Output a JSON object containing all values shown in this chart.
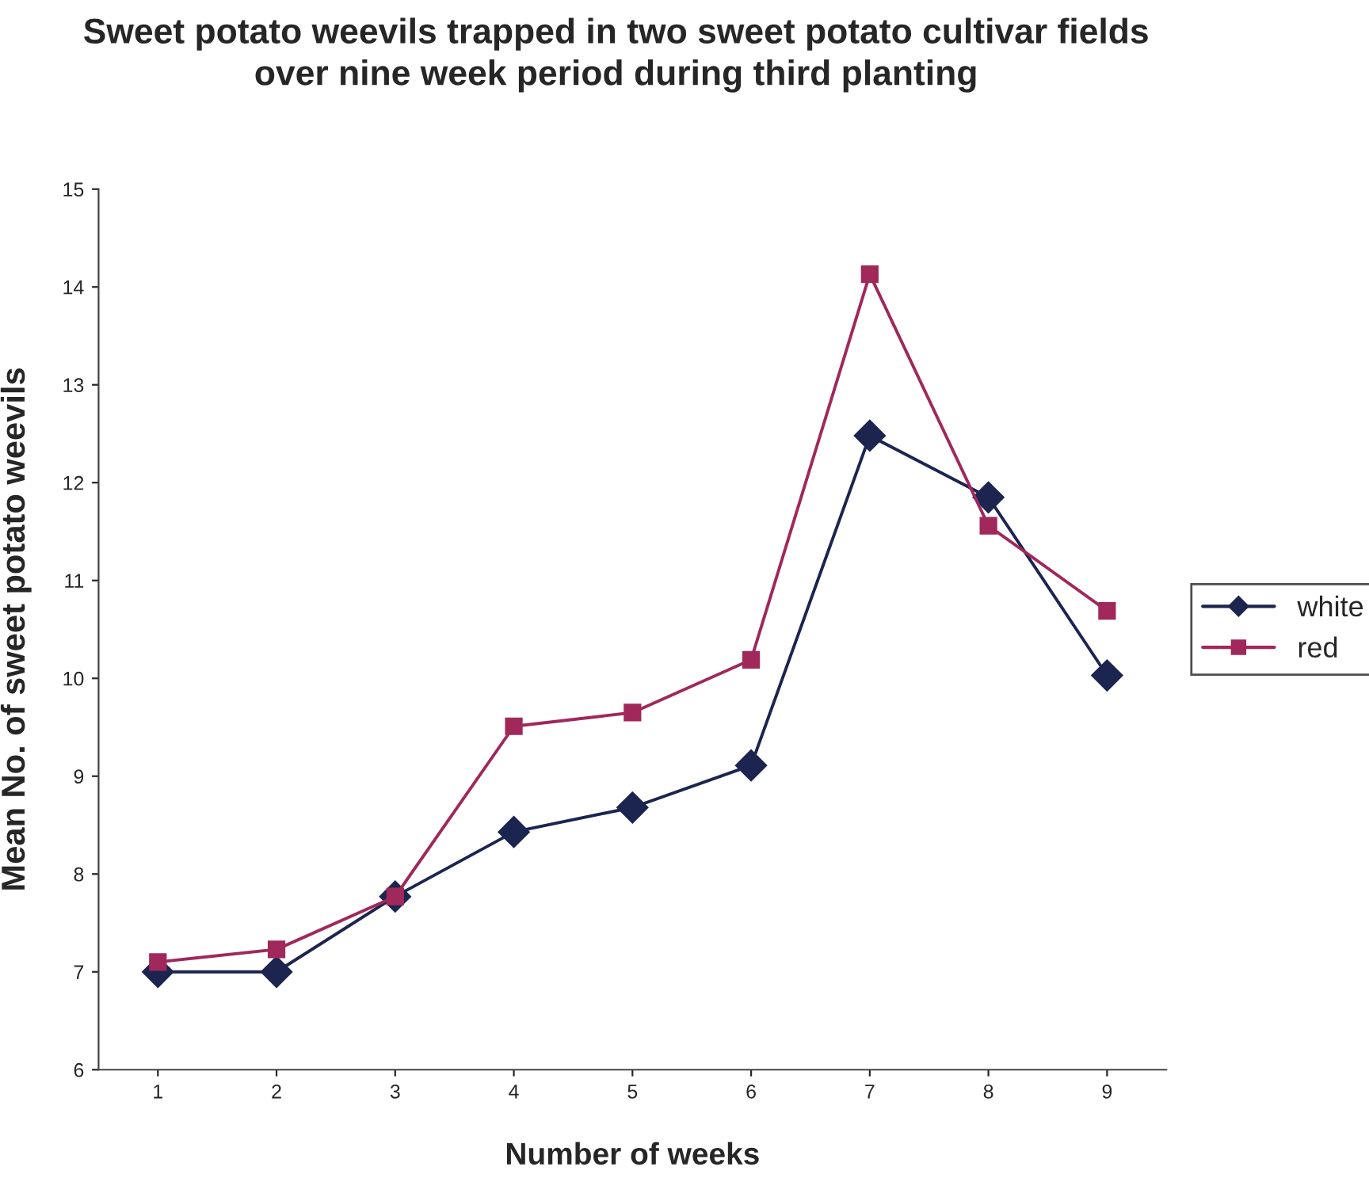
{
  "chart_data": {
    "type": "line",
    "title": "Sweet potato weevils trapped in two sweet potato cultivar fields\nover nine week period during third planting",
    "xlabel": "Number of weeks",
    "ylabel": "Mean No. of sweet potato weevils",
    "categories": [
      "1",
      "2",
      "3",
      "4",
      "5",
      "6",
      "7",
      "8",
      "9"
    ],
    "series": [
      {
        "name": "white",
        "color": "#1c2450",
        "marker": "diamond",
        "values": [
          7.0,
          7.0,
          7.77,
          8.43,
          8.68,
          9.11,
          12.48,
          11.85,
          10.03
        ]
      },
      {
        "name": "red",
        "color": "#a0285a",
        "marker": "square",
        "values": [
          7.1,
          7.23,
          7.77,
          9.51,
          9.65,
          10.19,
          14.13,
          11.56,
          10.69
        ]
      }
    ],
    "ylim": [
      6,
      15
    ],
    "yticks": [
      6,
      7,
      8,
      9,
      10,
      11,
      12,
      13,
      14,
      15
    ],
    "grid": false,
    "legend": "right",
    "line_style": "solid"
  }
}
